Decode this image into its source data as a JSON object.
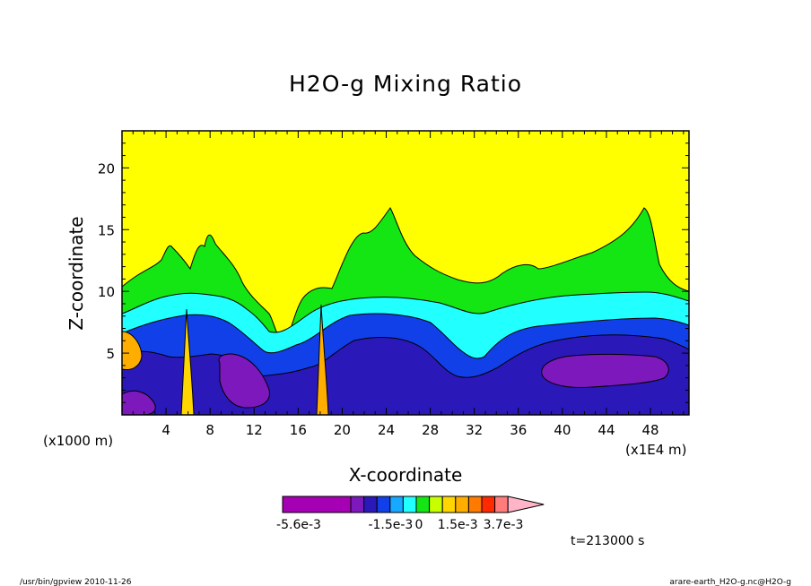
{
  "chart_data": {
    "type": "heatmap",
    "title": "H2O-g Mixing Ratio",
    "xlabel": "X-coordinate",
    "ylabel": "Z-coordinate",
    "x_unit_left": "(x1000 m)",
    "x_unit_right": "(x1E4 m)",
    "xlim": [
      0,
      51.5
    ],
    "ylim": [
      0,
      23
    ],
    "x_ticks": [
      4,
      8,
      12,
      16,
      20,
      24,
      28,
      32,
      36,
      40,
      44,
      48
    ],
    "y_ticks": [
      5,
      10,
      15,
      20
    ],
    "colorbar": {
      "colors": [
        "#a600b4",
        "#7d18bc",
        "#2b18b8",
        "#1140e8",
        "#17a8ff",
        "#22ffff",
        "#14e614",
        "#c8ff00",
        "#ffd600",
        "#ffae00",
        "#ff7a00",
        "#ff2a00",
        "#ff7c7c",
        "#ffb4c8"
      ],
      "tick_labels": [
        "-5.6e-3",
        "-1.5e-3",
        "0",
        "1.5e-3",
        "3.7e-3"
      ]
    },
    "time_label": "t=213000 s",
    "footer_left": "/usr/bin/gpview  2010-11-26",
    "footer_right": "arare-earth_H2O-g.nc@H2O-g"
  }
}
